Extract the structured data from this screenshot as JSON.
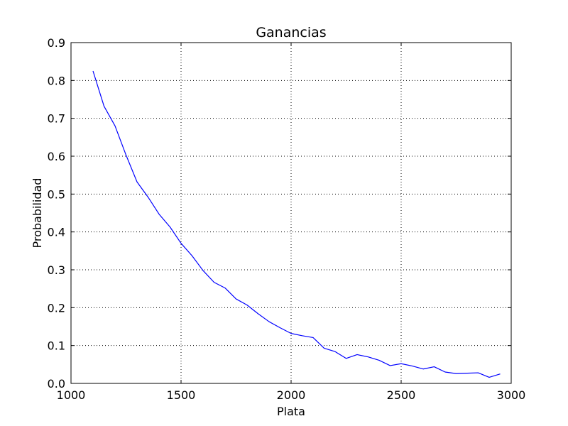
{
  "chart_data": {
    "type": "line",
    "title": "Ganancias",
    "xlabel": "Plata",
    "ylabel": "Probabilidad",
    "xlim": [
      1000,
      3000
    ],
    "ylim": [
      0.0,
      0.9
    ],
    "xticks": [
      1000,
      1500,
      2000,
      2500,
      3000
    ],
    "xtick_labels": [
      "1000",
      "1500",
      "2000",
      "2500",
      "3000"
    ],
    "yticks": [
      0.0,
      0.1,
      0.2,
      0.3,
      0.4,
      0.5,
      0.6,
      0.7,
      0.8,
      0.9
    ],
    "ytick_labels": [
      "0.0",
      "0.1",
      "0.2",
      "0.3",
      "0.4",
      "0.5",
      "0.6",
      "0.7",
      "0.8",
      "0.9"
    ],
    "grid": true,
    "series": [
      {
        "color": "#0000ff",
        "x": [
          1100,
          1150,
          1200,
          1250,
          1300,
          1350,
          1400,
          1450,
          1500,
          1550,
          1600,
          1650,
          1700,
          1750,
          1800,
          1850,
          1900,
          1950,
          2000,
          2050,
          2100,
          2150,
          2200,
          2250,
          2300,
          2350,
          2400,
          2450,
          2500,
          2550,
          2600,
          2650,
          2700,
          2750,
          2800,
          2850,
          2900,
          2950
        ],
        "y": [
          0.825,
          0.732,
          0.68,
          0.603,
          0.532,
          0.492,
          0.447,
          0.413,
          0.37,
          0.337,
          0.298,
          0.267,
          0.252,
          0.223,
          0.207,
          0.184,
          0.163,
          0.147,
          0.132,
          0.126,
          0.121,
          0.093,
          0.084,
          0.066,
          0.076,
          0.07,
          0.061,
          0.047,
          0.052,
          0.046,
          0.038,
          0.044,
          0.03,
          0.026,
          0.027,
          0.028,
          0.016,
          0.025
        ]
      }
    ]
  }
}
